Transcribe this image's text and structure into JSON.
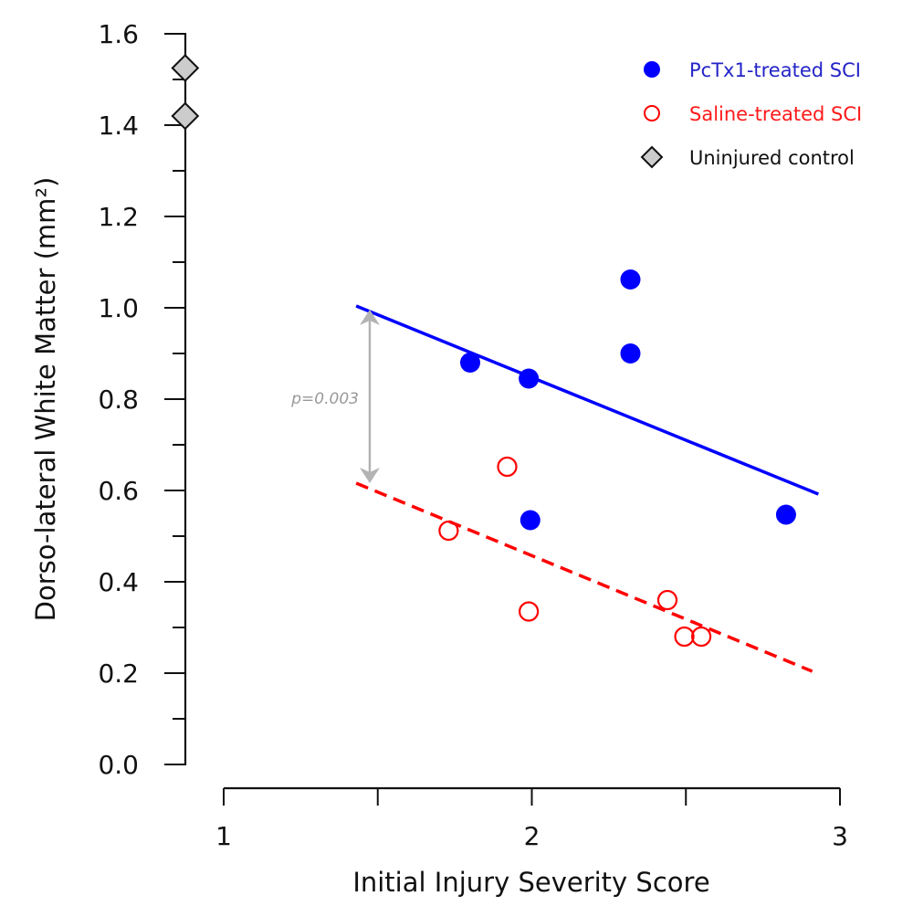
{
  "chart_data": {
    "type": "scatter",
    "title": "",
    "xlabel": "Initial Injury Severity Score",
    "ylabel": "Dorso-lateral White Matter (mm²)",
    "xlim": [
      0.875,
      3
    ],
    "ylim": [
      0,
      1.6
    ],
    "x_ticks": [
      1,
      1.5,
      2,
      2.5,
      3
    ],
    "x_tick_labels": [
      "1",
      "",
      "2",
      "",
      "3"
    ],
    "y_ticks": [
      0,
      0.1,
      0.2,
      0.3,
      0.4,
      0.5,
      0.6,
      0.7,
      0.8,
      0.9,
      1.0,
      1.1,
      1.2,
      1.3,
      1.4,
      1.5,
      1.6
    ],
    "y_tick_labels": [
      "0.0",
      "",
      "0.2",
      "",
      "0.4",
      "",
      "0.6",
      "",
      "0.8",
      "",
      "1.0",
      "",
      "1.2",
      "",
      "1.4",
      "",
      "1.6"
    ],
    "grid": false,
    "legend_position": "top-right",
    "series": [
      {
        "name": "PcTx1-treated SCI",
        "marker": "filled-circle",
        "color": "#0000ff",
        "label_color": "#2424c8",
        "points": [
          {
            "x": 1.8,
            "y": 0.88
          },
          {
            "x": 1.99,
            "y": 0.845
          },
          {
            "x": 2.32,
            "y": 1.062
          },
          {
            "x": 2.32,
            "y": 0.9
          },
          {
            "x": 1.995,
            "y": 0.535
          },
          {
            "x": 2.825,
            "y": 0.547
          }
        ],
        "fit_line": {
          "x": [
            1.43,
            2.93
          ],
          "y": [
            1.004,
            0.592
          ],
          "style": "solid"
        }
      },
      {
        "name": "Saline-treated SCI",
        "marker": "open-circle",
        "color": "#ff0000",
        "label_color": "#ff1a1a",
        "points": [
          {
            "x": 1.92,
            "y": 0.652
          },
          {
            "x": 1.73,
            "y": 0.512
          },
          {
            "x": 1.99,
            "y": 0.335
          },
          {
            "x": 2.44,
            "y": 0.36
          },
          {
            "x": 2.495,
            "y": 0.28
          },
          {
            "x": 2.55,
            "y": 0.28
          }
        ],
        "fit_line": {
          "x": [
            1.43,
            2.91
          ],
          "y": [
            0.616,
            0.204
          ],
          "style": "dashed"
        }
      },
      {
        "name": "Uninjured control",
        "marker": "diamond",
        "color": "#cccccc",
        "label_color": "#111111",
        "points": [
          {
            "x": 0.875,
            "y": 1.525
          },
          {
            "x": 0.875,
            "y": 1.42
          }
        ]
      }
    ],
    "annotations": [
      {
        "text": "p=0.003",
        "type": "double-arrow",
        "x": 1.474,
        "y_from": 0.616,
        "y_to": 0.996,
        "color": "#b3b3b3"
      }
    ]
  }
}
